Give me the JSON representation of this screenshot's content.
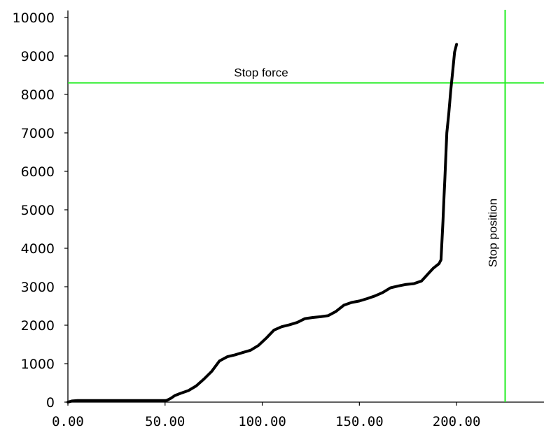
{
  "chart_data": {
    "type": "line",
    "title": "",
    "xlabel": "",
    "ylabel": "",
    "xlim": [
      0,
      245
    ],
    "ylim": [
      0,
      10000
    ],
    "x_ticks": [
      0,
      50,
      100,
      150,
      200
    ],
    "x_tick_labels": [
      "0.00",
      "50.00",
      "100.00",
      "150.00",
      "200.00"
    ],
    "y_ticks": [
      0,
      1000,
      2000,
      3000,
      4000,
      5000,
      6000,
      7000,
      8000,
      9000,
      10000
    ],
    "y_tick_labels": [
      "0",
      "1000",
      "2000",
      "3000",
      "4000",
      "5000",
      "6000",
      "7000",
      "8000",
      "9000",
      "10000"
    ],
    "grid": false,
    "series": [
      {
        "color": "#000000",
        "x": [
          0,
          2,
          5,
          10,
          20,
          30,
          40,
          50,
          51,
          53,
          55,
          58,
          62,
          66,
          70,
          74,
          78,
          82,
          86,
          90,
          94,
          98,
          102,
          106,
          110,
          114,
          118,
          122,
          126,
          130,
          134,
          138,
          142,
          146,
          150,
          154,
          158,
          162,
          166,
          170,
          174,
          178,
          182,
          186,
          188,
          191,
          192,
          193,
          193.5,
          194,
          195,
          196,
          197,
          198,
          199,
          200
        ],
        "y": [
          0,
          30,
          40,
          40,
          40,
          40,
          40,
          40,
          50,
          100,
          170,
          230,
          300,
          420,
          600,
          800,
          1070,
          1180,
          1230,
          1290,
          1350,
          1470,
          1660,
          1870,
          1960,
          2010,
          2070,
          2170,
          2200,
          2220,
          2250,
          2360,
          2520,
          2590,
          2630,
          2690,
          2760,
          2850,
          2970,
          3020,
          3060,
          3080,
          3150,
          3370,
          3480,
          3600,
          3700,
          4700,
          5300,
          5800,
          7000,
          7500,
          8100,
          8600,
          9100,
          9300
        ]
      }
    ],
    "reference_lines": [
      {
        "orientation": "horizontal",
        "value": 8300,
        "label": "Stop force",
        "color": "#22ee22"
      },
      {
        "orientation": "vertical",
        "value": 225,
        "label": "Stop position",
        "color": "#22ee22"
      }
    ]
  }
}
